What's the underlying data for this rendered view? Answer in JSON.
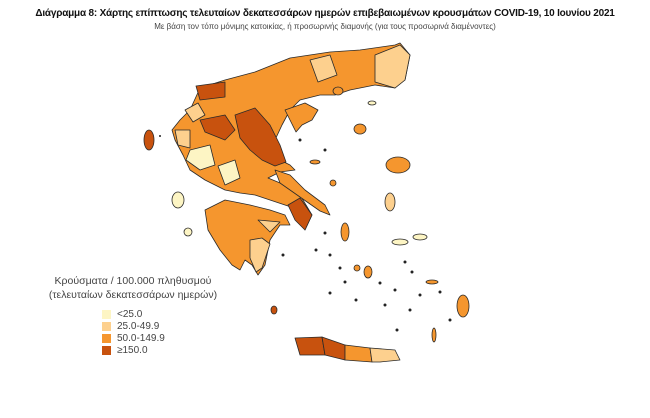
{
  "title": "Διάγραμμα 8: Χάρτης επίπτωσης τελευταίων δεκατεσσάρων ημερών επιβεβαιωμένων κρουσμάτων COVID-19, 10 Ιουνίου 2021",
  "subtitle": "Με βάση τον τόπο μόνιμης κατοικίας, ή προσωρινής διαμονής (για τους προσωρινά διαμένοντες)",
  "legend": {
    "title_line1": "Κρούσματα / 100.000 πληθυσμού",
    "title_line2": "(τελευταίων δεκατεσσάρων ημερών)",
    "items": [
      {
        "label": "<25.0",
        "color": "#fdf5c4"
      },
      {
        "label": "25.0-49.9",
        "color": "#fdd08e"
      },
      {
        "label": "50.0-149.9",
        "color": "#f5962e"
      },
      {
        "label": "≥150.0",
        "color": "#c8520e"
      }
    ]
  }
}
